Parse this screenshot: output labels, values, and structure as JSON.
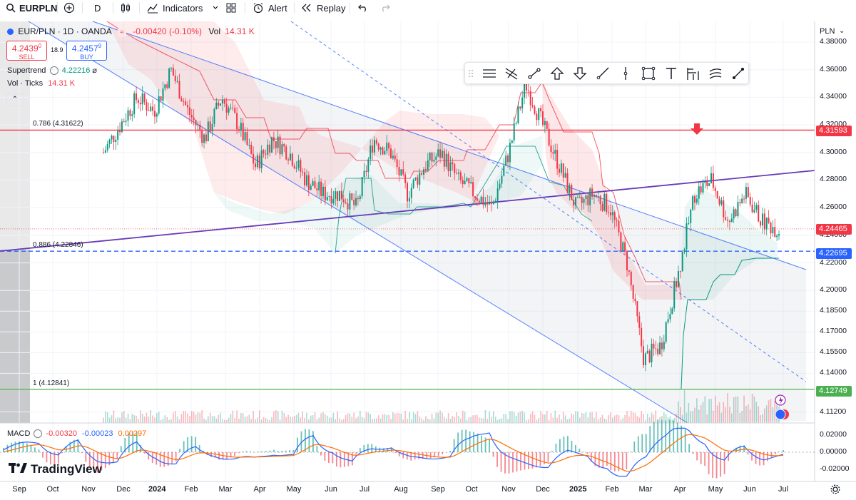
{
  "toolbar": {
    "symbol": "EURPLN",
    "interval": "D",
    "indicators": "Indicators",
    "alert": "Alert",
    "replay": "Replay"
  },
  "legend": {
    "title": "EUR/PLN · 1D · OANDA",
    "change": "-0.00420 (-0.10%)",
    "vol_label": "Vol",
    "vol_value": "14.31 K",
    "sell_price": "4.2439",
    "sell_sup": "0",
    "sell_label": "SELL",
    "spread": "18.9",
    "buy_price": "4.2457",
    "buy_sup": "9",
    "buy_label": "BUY",
    "supertrend_label": "Supertrend",
    "supertrend_value": "4.22216",
    "vol_ticks_label": "Vol · Ticks",
    "vol_ticks_value": "14.31 K"
  },
  "colors": {
    "up": "#089981",
    "down": "#f23645",
    "accent": "#2962ff",
    "fib_red": "#f23645",
    "fib_blue": "#2962ff",
    "fib_green": "#4caf50",
    "purple": "#673ab7"
  },
  "fib_levels": [
    {
      "label": "0.786 (4.31622)",
      "price": 4.31622,
      "color": "#f23645",
      "style": "solid"
    },
    {
      "label": "0.886 (4.22846)",
      "price": 4.22846,
      "color": "#2962ff",
      "style": "dashed"
    },
    {
      "label": "1 (4.12841)",
      "price": 4.12841,
      "color": "#4caf50",
      "style": "solid"
    }
  ],
  "price_axis": {
    "unit": "PLN",
    "ticks": [
      "4.38000",
      "4.36000",
      "4.34000",
      "4.32000",
      "4.30000",
      "4.28000",
      "4.26000",
      "4.24000",
      "4.22000",
      "4.20000",
      "4.18500",
      "4.17000",
      "4.15500",
      "4.14000",
      "4.11200"
    ],
    "labels": [
      {
        "text": "4.31593",
        "color": "#f23645"
      },
      {
        "text": "4.24465",
        "color": "#f23645"
      },
      {
        "text": "4.22695",
        "color": "#2962ff"
      },
      {
        "text": "4.12749",
        "color": "#4caf50"
      }
    ]
  },
  "macd": {
    "label": "MACD",
    "v1": "-0.00320",
    "v2": "-0.00023",
    "v3": "0.00297",
    "ticks": [
      "0.02000",
      "0.00000",
      "-0.02000"
    ]
  },
  "time_axis": {
    "labels": [
      "Sep",
      "Oct",
      "Nov",
      "Dec",
      "2024",
      "Feb",
      "Mar",
      "Apr",
      "May",
      "Jun",
      "Jul",
      "Aug",
      "Sep",
      "Oct",
      "Nov",
      "Dec",
      "2025",
      "Feb",
      "Mar",
      "Apr",
      "May",
      "Jun",
      "Jul"
    ]
  },
  "brand": {
    "name": "TradingView"
  },
  "chart_data": {
    "type": "candlestick",
    "symbol": "EUR/PLN",
    "interval": "1D",
    "source": "OANDA",
    "ylim": [
      4.104,
      4.395
    ],
    "x_range": [
      "2023-09",
      "2025-07"
    ],
    "months": [
      "2023-09",
      "2023-10",
      "2023-11",
      "2023-12",
      "2024-01",
      "2024-02",
      "2024-03",
      "2024-04",
      "2024-05",
      "2024-06",
      "2024-07",
      "2024-08",
      "2024-09",
      "2024-10",
      "2024-11",
      "2024-12",
      "2025-01",
      "2025-02",
      "2025-03",
      "2025-04",
      "2025-05",
      "2025-06"
    ],
    "close_path": [
      4.3,
      4.32,
      4.34,
      4.33,
      4.36,
      4.33,
      4.31,
      4.34,
      4.32,
      4.29,
      4.31,
      4.3,
      4.28,
      4.27,
      4.27,
      4.26,
      4.31,
      4.3,
      4.27,
      4.29,
      4.3,
      4.28,
      4.27,
      4.26,
      4.3,
      4.35,
      4.32,
      4.29,
      4.26,
      4.27,
      4.26,
      4.22,
      4.15,
      4.16,
      4.21,
      4.27,
      4.28,
      4.25,
      4.27,
      4.25,
      4.244
    ],
    "last": {
      "close": 4.24465,
      "change": -0.0042,
      "change_pct": -0.1,
      "bid": 4.2439,
      "ask": 4.24579,
      "spread": 18.9
    },
    "supertrend": 4.22216,
    "channel_lines": [
      "descending channel upper",
      "descending channel lower",
      "descending channel midline (dashed)"
    ],
    "trendline": "rising support line (purple)",
    "marker": "down arrow near 2025-04 high",
    "macd_ylim": [
      -0.03,
      0.03
    ]
  }
}
